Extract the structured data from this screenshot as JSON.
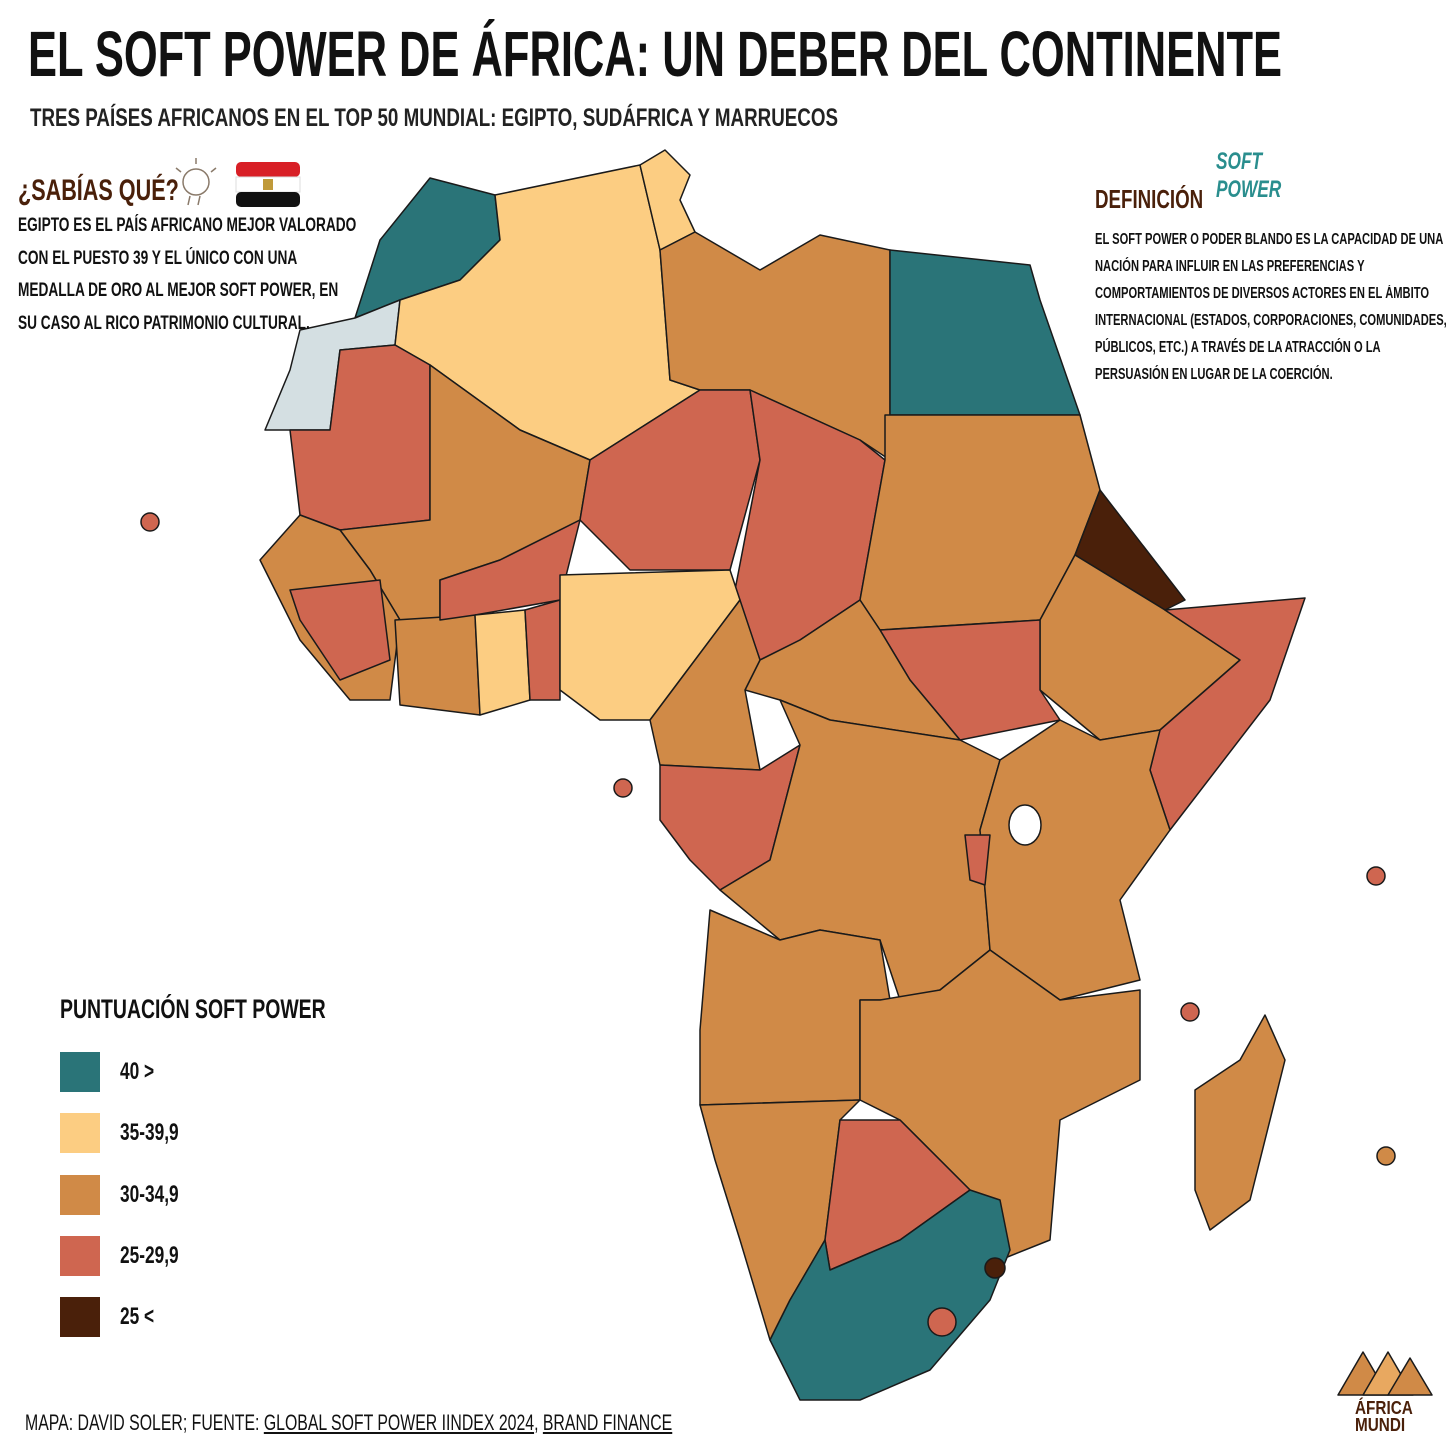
{
  "header": {
    "title": "EL SOFT POWER DE ÁFRICA: UN DEBER DEL CONTINENTE",
    "subtitle": "TRES PAÍSES AFRICANOS EN EL TOP 50 MUNDIAL: EGIPTO, SUDÁFRICA Y MARRUECOS"
  },
  "fact": {
    "title": "¿SABÍAS QUÉ?",
    "lines": [
      "EGIPTO ES EL PAÍS AFRICANO MEJOR VALORADO",
      "CON EL PUESTO 39 Y EL ÚNICO CON UNA",
      "MEDALLA DE ORO AL MEJOR SOFT POWER, EN",
      "SU CASO AL RICO PATRIMONIO CULTURAL."
    ]
  },
  "definition": {
    "title": "DEFINICIÓN",
    "logo": [
      "SOFT",
      "POWER"
    ],
    "lines": [
      "EL SOFT POWER O PODER BLANDO ES LA CAPACIDAD DE UNA",
      "NACIÓN PARA INFLUIR EN LAS PREFERENCIAS Y",
      "COMPORTAMIENTOS DE DIVERSOS ACTORES EN EL ÁMBITO",
      "INTERNACIONAL (ESTADOS, CORPORACIONES, COMUNIDADES,",
      "PÚBLICOS, ETC.) A TRAVÉS DE LA ATRACCIÓN O LA",
      "PERSUASIÓN EN LUGAR DE LA COERCIÓN."
    ]
  },
  "legend": {
    "title": "PUNTUACIÓN SOFT POWER",
    "items": [
      {
        "label": "40 >",
        "color": "#2a7478"
      },
      {
        "label": "35-39,9",
        "color": "#fccd82"
      },
      {
        "label": "30-34,9",
        "color": "#d08a47"
      },
      {
        "label": "25-29,9",
        "color": "#cf6650"
      },
      {
        "label": "25 <",
        "color": "#4a200a"
      }
    ]
  },
  "footer": {
    "prefix": "MAPA: DAVID SOLER; FUENTE: ",
    "links": [
      "GLOBAL SOFT POWER IINDEX 2024",
      "BRAND FINANCE"
    ],
    "separator": ", "
  },
  "brand": [
    "ÁFRICA",
    "MUNDI"
  ]
}
